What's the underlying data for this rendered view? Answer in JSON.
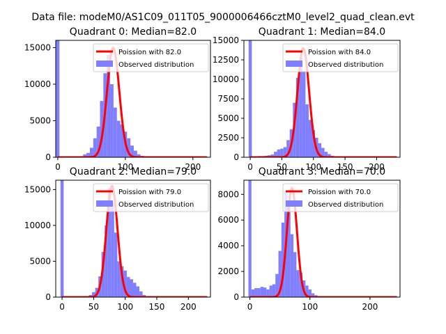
{
  "figure": {
    "suptitle": "Data file: modeM0/AS1C09_011T05_9000006466cztM0_level2_quad_clean.evt",
    "colors": {
      "bar": "#7f7fff",
      "poisson": "#ff0000",
      "axis": "#000000"
    }
  },
  "chart_data": [
    {
      "type": "bar",
      "title": "Quadrant 0: Median=82.0",
      "xlim": [
        -3,
        226
      ],
      "ylim": [
        0,
        16000
      ],
      "xticks": [
        0,
        100,
        200
      ],
      "yticks": [
        0,
        5000,
        10000,
        15000
      ],
      "bin_width": 5,
      "bins": [
        {
          "x": 0,
          "y": 16000
        },
        {
          "x": 35,
          "y": 150
        },
        {
          "x": 40,
          "y": 400
        },
        {
          "x": 45,
          "y": 600
        },
        {
          "x": 50,
          "y": 1300
        },
        {
          "x": 55,
          "y": 2600
        },
        {
          "x": 60,
          "y": 4200
        },
        {
          "x": 65,
          "y": 7700
        },
        {
          "x": 70,
          "y": 11500
        },
        {
          "x": 75,
          "y": 14000
        },
        {
          "x": 80,
          "y": 10000
        },
        {
          "x": 85,
          "y": 6800
        },
        {
          "x": 90,
          "y": 5000
        },
        {
          "x": 95,
          "y": 4500
        },
        {
          "x": 100,
          "y": 3500
        },
        {
          "x": 105,
          "y": 2600
        },
        {
          "x": 110,
          "y": 1600
        },
        {
          "x": 115,
          "y": 900
        },
        {
          "x": 120,
          "y": 400
        },
        {
          "x": 125,
          "y": 200
        },
        {
          "x": 130,
          "y": 100
        }
      ],
      "poisson": {
        "label": "Poission with 82.0",
        "mean": 82.0,
        "peak": 15000,
        "sigma": 9.06
      },
      "legend": [
        "Poission with 82.0",
        "Observed distribution"
      ]
    },
    {
      "type": "bar",
      "title": "Quadrant 1: Median=84.0",
      "xlim": [
        -10,
        237
      ],
      "ylim": [
        0,
        15000
      ],
      "xticks": [
        0,
        50,
        100,
        150,
        200
      ],
      "yticks": [
        0,
        2500,
        5000,
        7500,
        10000,
        12500,
        15000
      ],
      "bin_width": 5,
      "bins": [
        {
          "x": 0,
          "y": 15000
        },
        {
          "x": 5,
          "y": 80
        },
        {
          "x": 10,
          "y": 120
        },
        {
          "x": 15,
          "y": 150
        },
        {
          "x": 20,
          "y": 150
        },
        {
          "x": 25,
          "y": 200
        },
        {
          "x": 30,
          "y": 250
        },
        {
          "x": 35,
          "y": 350
        },
        {
          "x": 40,
          "y": 700
        },
        {
          "x": 45,
          "y": 1000
        },
        {
          "x": 50,
          "y": 1100
        },
        {
          "x": 55,
          "y": 1300
        },
        {
          "x": 60,
          "y": 2200
        },
        {
          "x": 65,
          "y": 3600
        },
        {
          "x": 70,
          "y": 7000
        },
        {
          "x": 75,
          "y": 10200
        },
        {
          "x": 80,
          "y": 12800
        },
        {
          "x": 85,
          "y": 11000
        },
        {
          "x": 90,
          "y": 6800
        },
        {
          "x": 95,
          "y": 4800
        },
        {
          "x": 100,
          "y": 3500
        },
        {
          "x": 105,
          "y": 2500
        },
        {
          "x": 110,
          "y": 1800
        },
        {
          "x": 115,
          "y": 1200
        },
        {
          "x": 120,
          "y": 700
        },
        {
          "x": 125,
          "y": 400
        },
        {
          "x": 130,
          "y": 200
        },
        {
          "x": 135,
          "y": 100
        }
      ],
      "poisson": {
        "label": "Poission with 84.0",
        "mean": 84.0,
        "peak": 14000,
        "sigma": 9.17
      },
      "legend": [
        "Poission with 84.0",
        "Observed distribution"
      ]
    },
    {
      "type": "bar",
      "title": "Quadrant 2: Median=79.0",
      "xlim": [
        -10,
        235
      ],
      "ylim": [
        0,
        16300
      ],
      "xticks": [
        0,
        50,
        100,
        150,
        200
      ],
      "yticks": [
        0,
        5000,
        10000,
        15000
      ],
      "bin_width": 5,
      "bins": [
        {
          "x": 0,
          "y": 16300
        },
        {
          "x": 45,
          "y": 300
        },
        {
          "x": 50,
          "y": 700
        },
        {
          "x": 55,
          "y": 1300
        },
        {
          "x": 60,
          "y": 2900
        },
        {
          "x": 65,
          "y": 6300
        },
        {
          "x": 70,
          "y": 10000
        },
        {
          "x": 75,
          "y": 15200
        },
        {
          "x": 80,
          "y": 13200
        },
        {
          "x": 85,
          "y": 9000
        },
        {
          "x": 90,
          "y": 5000
        },
        {
          "x": 95,
          "y": 4300
        },
        {
          "x": 100,
          "y": 3700
        },
        {
          "x": 105,
          "y": 2800
        },
        {
          "x": 110,
          "y": 2500
        },
        {
          "x": 115,
          "y": 2000
        },
        {
          "x": 120,
          "y": 1500
        },
        {
          "x": 125,
          "y": 800
        },
        {
          "x": 130,
          "y": 300
        }
      ],
      "poisson": {
        "label": "Poission with 79.0",
        "mean": 79.0,
        "peak": 15500,
        "sigma": 8.89
      },
      "legend": [
        "Poission with 79.0",
        "Observed distribution"
      ]
    },
    {
      "type": "bar",
      "title": "Quadrant 3: Median=70.0",
      "xlim": [
        -10,
        250
      ],
      "ylim": [
        0,
        9100
      ],
      "xticks": [
        0,
        100,
        200
      ],
      "yticks": [
        0,
        2000,
        4000,
        6000,
        8000
      ],
      "bin_width": 5,
      "bins": [
        {
          "x": 0,
          "y": 9100
        },
        {
          "x": 5,
          "y": 600
        },
        {
          "x": 10,
          "y": 700
        },
        {
          "x": 15,
          "y": 700
        },
        {
          "x": 20,
          "y": 800
        },
        {
          "x": 25,
          "y": 750
        },
        {
          "x": 30,
          "y": 600
        },
        {
          "x": 35,
          "y": 900
        },
        {
          "x": 40,
          "y": 1000
        },
        {
          "x": 45,
          "y": 1800
        },
        {
          "x": 50,
          "y": 3600
        },
        {
          "x": 55,
          "y": 5800
        },
        {
          "x": 60,
          "y": 8200
        },
        {
          "x": 65,
          "y": 7400
        },
        {
          "x": 70,
          "y": 4900
        },
        {
          "x": 75,
          "y": 3500
        },
        {
          "x": 80,
          "y": 2100
        },
        {
          "x": 85,
          "y": 1900
        },
        {
          "x": 90,
          "y": 1300
        },
        {
          "x": 95,
          "y": 900
        },
        {
          "x": 100,
          "y": 600
        },
        {
          "x": 105,
          "y": 300
        },
        {
          "x": 110,
          "y": 150
        }
      ],
      "poisson": {
        "label": "Poission with 70.0",
        "mean": 70.0,
        "peak": 8500,
        "sigma": 8.37
      },
      "legend": [
        "Poission with 70.0",
        "Observed distribution"
      ]
    }
  ]
}
